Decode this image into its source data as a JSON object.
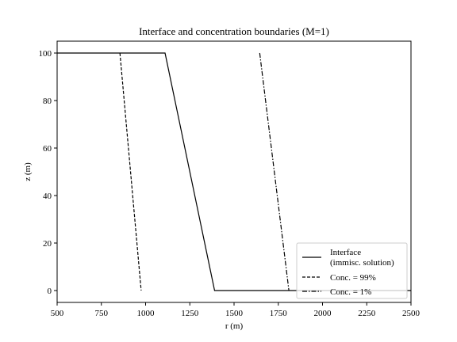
{
  "chart_data": {
    "type": "line",
    "title": "Interface and concentration boundaries (M=1)",
    "xlabel": "r (m)",
    "ylabel": "z (m)",
    "xlim": [
      500,
      2500
    ],
    "ylim": [
      105,
      -5
    ],
    "y_inverted": true,
    "xticks": [
      500,
      750,
      1000,
      1250,
      1500,
      1750,
      2000,
      2250,
      2500
    ],
    "yticks": [
      0,
      20,
      40,
      60,
      80,
      100
    ],
    "grid": false,
    "legend_position": "lower-right",
    "series": [
      {
        "name": "Interface",
        "name_line2": "(immisc. solution)",
        "style": "solid",
        "points": [
          [
            500,
            100
          ],
          [
            1110,
            100
          ],
          [
            1390,
            0
          ],
          [
            2500,
            0
          ]
        ]
      },
      {
        "name": "Conc. = 99%",
        "style": "dashed",
        "points": [
          [
            855,
            100
          ],
          [
            975,
            0
          ]
        ]
      },
      {
        "name": "Conc. = 1%",
        "style": "dashdot",
        "points": [
          [
            1645,
            100
          ],
          [
            1810,
            0
          ]
        ]
      }
    ]
  }
}
